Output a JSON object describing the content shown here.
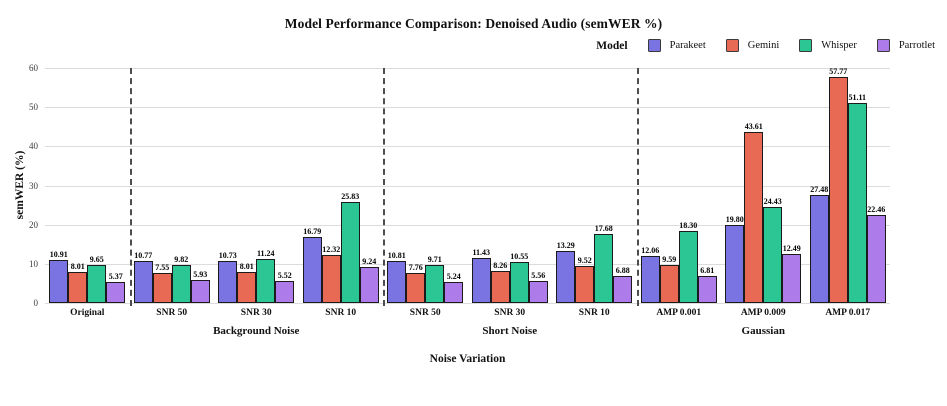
{
  "chart_data": {
    "type": "bar",
    "title": "Model Performance Comparison: Denoised Audio (semWER %)",
    "xlabel": "Noise Variation",
    "ylabel": "semWER (%)",
    "legend_title": "Model",
    "legend_position": "top-right",
    "grid": "horizontal",
    "ylim": [
      0,
      60
    ],
    "yticks": [
      0,
      10,
      20,
      30,
      40,
      50,
      60
    ],
    "categories": [
      "Original",
      "SNR 50",
      "SNR 30",
      "SNR 10",
      "SNR 50",
      "SNR 30",
      "SNR 10",
      "AMP 0.001",
      "AMP 0.009",
      "AMP 0.017"
    ],
    "category_groups": [
      {
        "label": "",
        "start": 0,
        "count": 1
      },
      {
        "label": "Background Noise",
        "start": 1,
        "count": 3
      },
      {
        "label": "Short Noise",
        "start": 4,
        "count": 3
      },
      {
        "label": "Gaussian",
        "start": 7,
        "count": 3
      }
    ],
    "separators_after_category": [
      0,
      3,
      6
    ],
    "series": [
      {
        "name": "Parakeet",
        "color": "#7a74e2",
        "values": [
          10.91,
          10.77,
          10.73,
          16.79,
          10.81,
          11.43,
          13.29,
          12.06,
          19.8,
          27.48
        ]
      },
      {
        "name": "Gemini",
        "color": "#e96a54",
        "values": [
          8.01,
          7.55,
          8.01,
          12.32,
          7.76,
          8.26,
          9.52,
          9.59,
          43.61,
          57.77
        ]
      },
      {
        "name": "Whisper",
        "color": "#2cc594",
        "values": [
          9.65,
          9.82,
          11.24,
          25.83,
          9.71,
          10.55,
          17.68,
          18.3,
          24.43,
          51.11
        ]
      },
      {
        "name": "Parrotlet",
        "color": "#ad7bea",
        "values": [
          5.37,
          5.93,
          5.52,
          9.24,
          5.24,
          5.56,
          6.88,
          6.81,
          12.49,
          22.46
        ]
      }
    ],
    "value_labels": true,
    "value_label_decimals": 2,
    "colors": {
      "bar_border": "#1b1b1b",
      "gridline": "#dcdcdc",
      "separator": "#4d4d4d"
    }
  }
}
